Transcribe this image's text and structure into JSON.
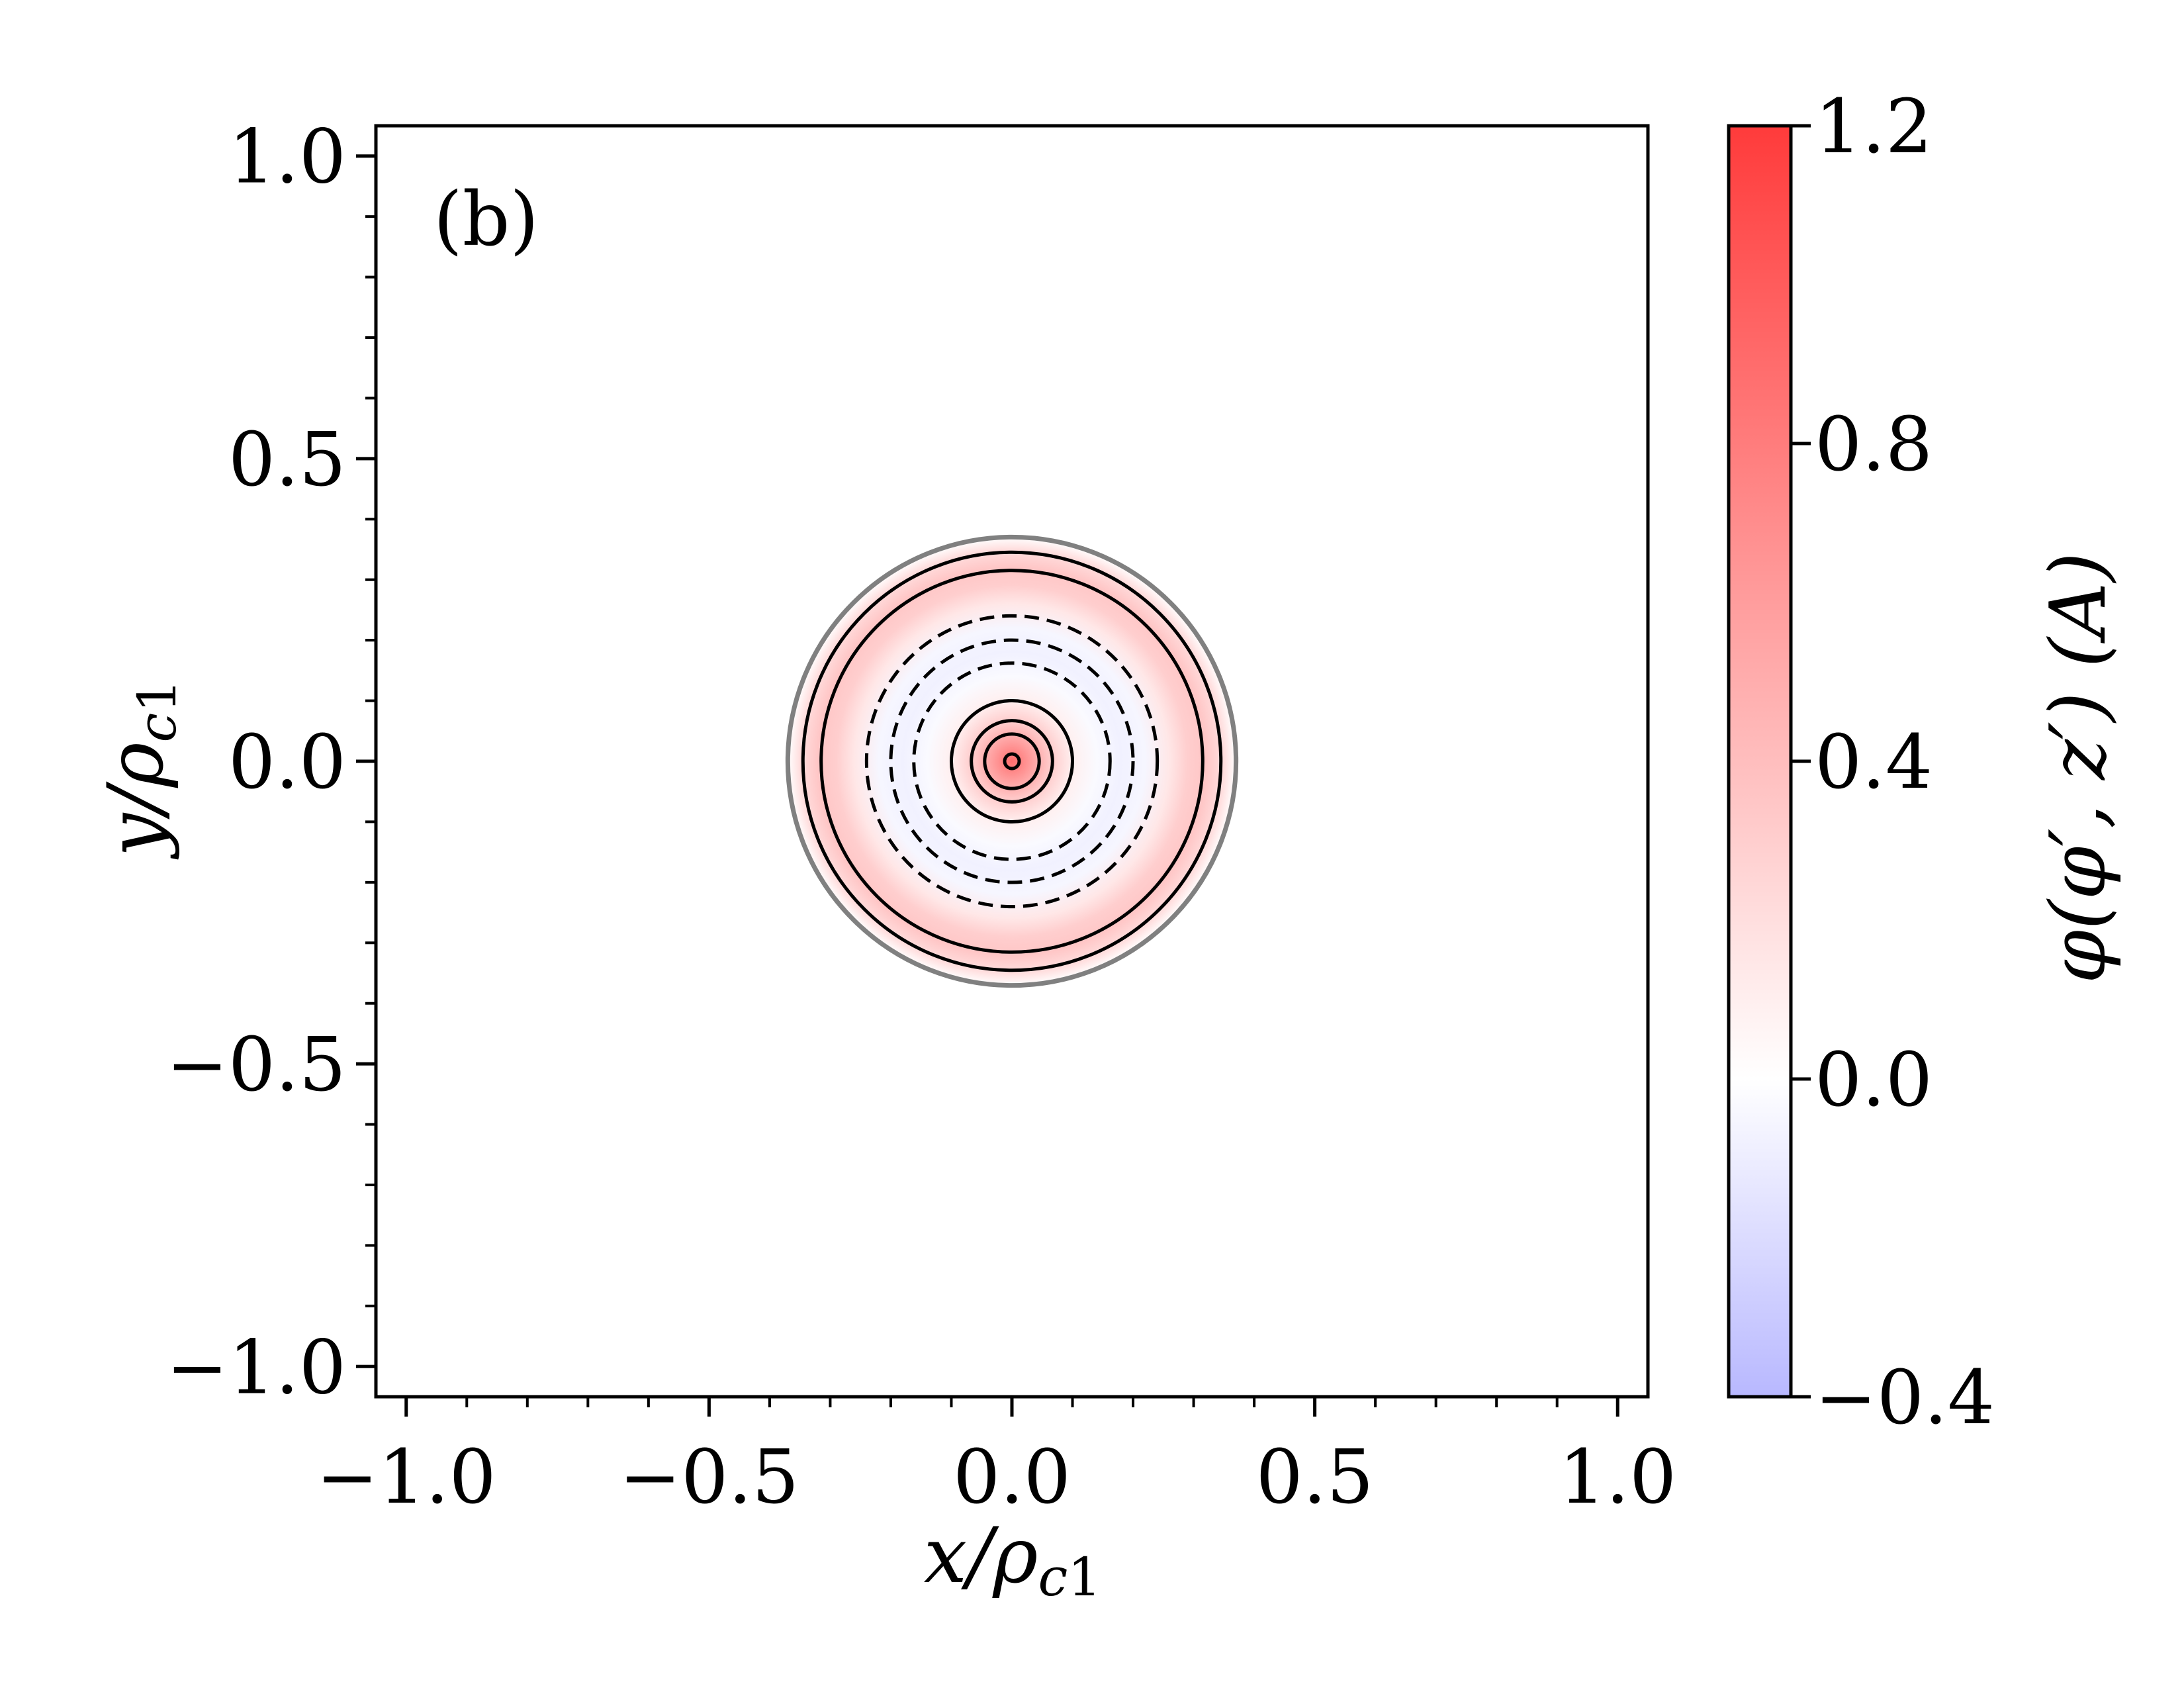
{
  "chart_data": {
    "type": "heatmap",
    "panel_label": "(b)",
    "xlabel": "x/ρc1",
    "ylabel": "y/ρc1",
    "xlim": [
      -1.05,
      1.05
    ],
    "ylim": [
      -1.05,
      1.05
    ],
    "x_ticks": [
      -1.0,
      -0.5,
      0.0,
      0.5,
      1.0
    ],
    "x_tick_labels": [
      "−1.0",
      "−0.5",
      "0.0",
      "0.5",
      "1.0"
    ],
    "y_ticks": [
      -1.0,
      -0.5,
      0.0,
      0.5,
      1.0
    ],
    "y_tick_labels": [
      "−1.0",
      "−0.5",
      "0.0",
      "0.5",
      "1.0"
    ],
    "colorbar": {
      "label": "φ(φ′, z′) (A)",
      "range": [
        -0.4,
        1.2
      ],
      "ticks": [
        -0.4,
        0.0,
        0.4,
        0.8,
        1.2
      ],
      "tick_labels": [
        "−0.4",
        "0.0",
        "0.4",
        "0.8",
        "1.2"
      ],
      "colormap": [
        "#b8b8ff",
        "#ffffff",
        "#ff3b3b"
      ]
    },
    "radial_field": {
      "r": [
        0.0,
        0.02,
        0.06,
        0.1,
        0.14,
        0.18,
        0.22,
        0.26,
        0.29,
        0.32,
        0.35,
        0.37
      ],
      "value": [
        0.9,
        0.7,
        0.35,
        0.1,
        -0.03,
        -0.08,
        -0.05,
        0.15,
        0.3,
        0.35,
        0.2,
        0.0
      ]
    },
    "boundary_radius": 0.37,
    "contours": [
      {
        "r": 0.012,
        "style": "solid"
      },
      {
        "r": 0.045,
        "style": "solid"
      },
      {
        "r": 0.067,
        "style": "solid"
      },
      {
        "r": 0.1,
        "style": "solid"
      },
      {
        "r": 0.162,
        "style": "dashed"
      },
      {
        "r": 0.2,
        "style": "dashed"
      },
      {
        "r": 0.24,
        "style": "dashed"
      },
      {
        "r": 0.315,
        "style": "solid"
      },
      {
        "r": 0.345,
        "style": "solid"
      }
    ]
  }
}
